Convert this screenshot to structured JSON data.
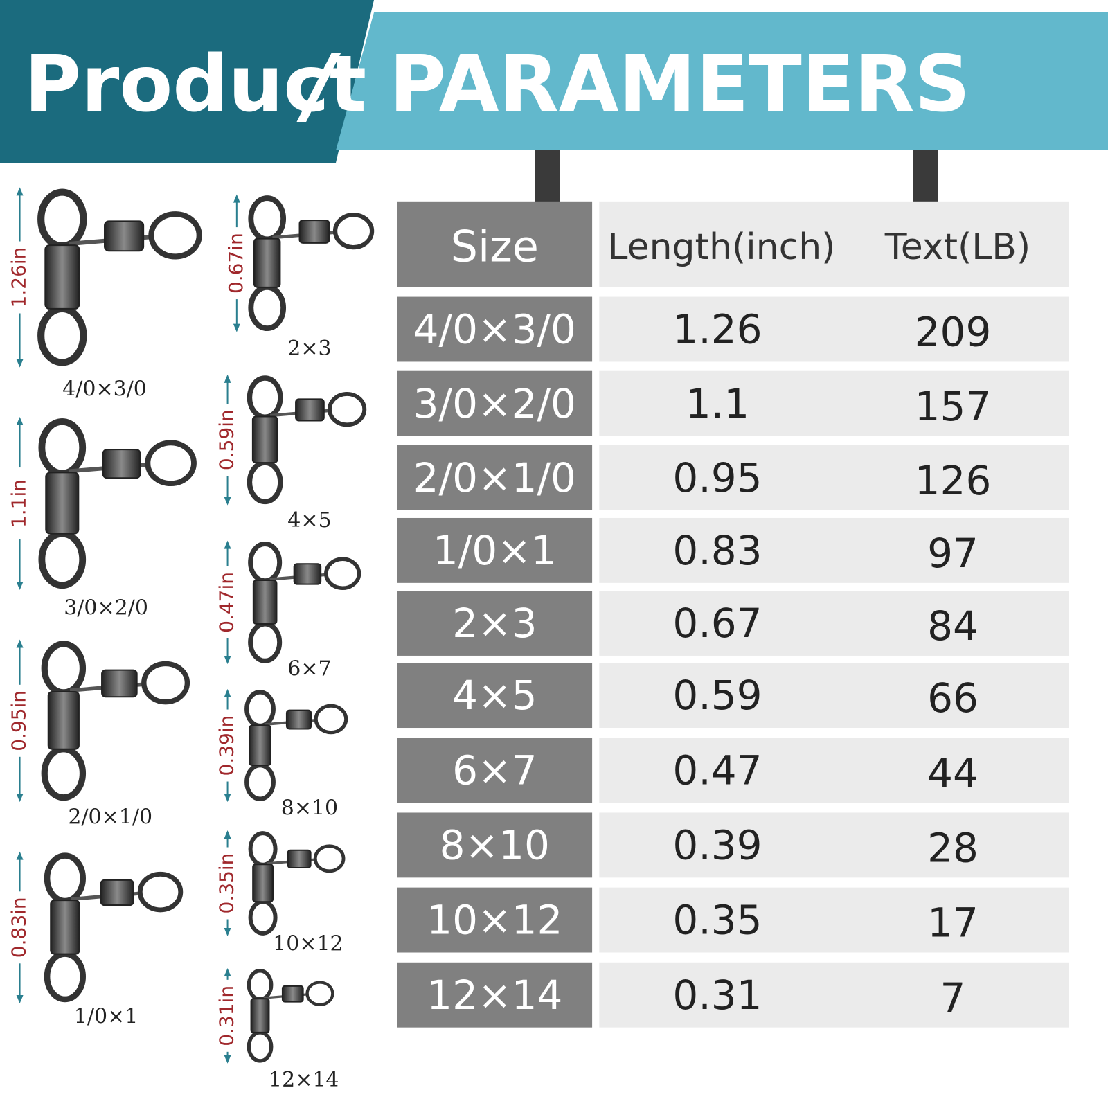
{
  "header": {
    "title": "Product",
    "separator": "/",
    "subtitle": "PARAMETERS"
  },
  "table": {
    "columns": [
      "Size",
      "Length(inch)",
      "Text(LB)"
    ],
    "rows": [
      [
        "4/0×3/0",
        1.26,
        209
      ],
      [
        "3/0×2/0",
        1.1,
        157
      ],
      [
        "2/0×1/0",
        0.95,
        126
      ],
      [
        "1/0×1",
        0.83,
        97
      ],
      [
        "2×3",
        0.67,
        84
      ],
      [
        "4×5",
        0.59,
        66
      ],
      [
        "6×7",
        0.47,
        44
      ],
      [
        "8×10",
        0.39,
        28
      ],
      [
        "10×12",
        0.35,
        17
      ],
      [
        "12×14",
        0.31,
        7
      ]
    ]
  },
  "swivels": [
    {
      "length": "1.26in",
      "size": "4/0×3/0"
    },
    {
      "length": "1.1in",
      "size": "3/0×2/0"
    },
    {
      "length": "0.95in",
      "size": "2/0×1/0"
    },
    {
      "length": "0.83in",
      "size": "1/0×1"
    },
    {
      "length": "0.67in",
      "size": "2×3"
    },
    {
      "length": "0.59in",
      "size": "4×5"
    },
    {
      "length": "0.47in",
      "size": "6×7"
    },
    {
      "length": "0.39in",
      "size": "8×10"
    },
    {
      "length": "0.35in",
      "size": "10×12"
    },
    {
      "length": "0.31in",
      "size": "12×14"
    }
  ]
}
